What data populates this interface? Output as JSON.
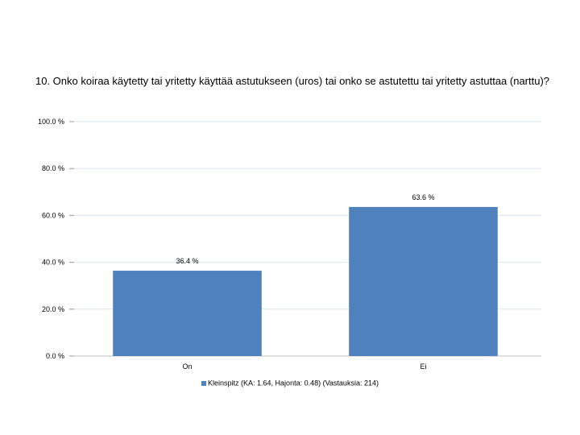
{
  "chart_data": {
    "type": "bar",
    "title": "10. Onko koiraa käytetty tai yritetty käyttää astutukseen (uros) tai onko se astutettu tai yritetty astuttaa (narttu)?",
    "categories": [
      "On",
      "Ei"
    ],
    "series": [
      {
        "name": "Kleinspitz (KA: 1.64, Hajonta: 0.48) (Vastauksia: 214)",
        "values": [
          36.4,
          63.6
        ],
        "value_labels": [
          "36.4 %",
          "63.6 %"
        ],
        "color": "#4f81bd"
      }
    ],
    "ylim": [
      0,
      100
    ],
    "yticks": [
      0,
      20,
      40,
      60,
      80,
      100
    ],
    "ytick_labels": [
      "0.0 %",
      "20.0 %",
      "40.0 %",
      "60.0 %",
      "80.0 %",
      "100.0 %"
    ],
    "xlabel": "",
    "ylabel": "",
    "grid": true,
    "grid_color": "#dbe5f1",
    "legend_position": "bottom"
  }
}
